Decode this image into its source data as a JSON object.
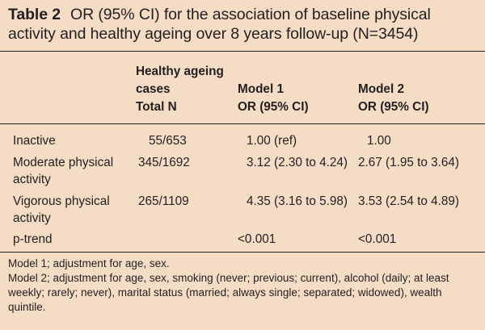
{
  "caption": {
    "number": "Table 2",
    "title": "OR (95% CI) for the association of baseline physical activity and healthy ageing over 8 years follow-up (N=3454)"
  },
  "headers": {
    "cases": [
      "Healthy ageing",
      "cases",
      "Total N"
    ],
    "model1": [
      "Model 1",
      "OR (95% CI)"
    ],
    "model2": [
      "Model 2",
      "OR (95% CI)"
    ]
  },
  "rows": [
    {
      "label": [
        "Inactive"
      ],
      "cases": "55/653",
      "model1": "1.00 (ref)",
      "model2": "1.00"
    },
    {
      "label": [
        "Moderate physical",
        "activity"
      ],
      "cases": "345/1692",
      "model1": "3.12 (2.30 to 4.24)",
      "model2": "2.67 (1.95 to 3.64)"
    },
    {
      "label": [
        "Vigorous physical",
        "activity"
      ],
      "cases": "265/1109",
      "model1": "4.35 (3.16 to 5.98)",
      "model2": "3.53 (2.54 to 4.89)"
    },
    {
      "label": [
        "p-trend"
      ],
      "cases": "",
      "model1": "<0.001",
      "model2": "<0.001"
    }
  ],
  "footnotes": [
    "Model 1; adjustment for age, sex.",
    "Model 2; adjustment for age, sex, smoking (never; previous; current), alcohol (daily; at least weekly; rarely; never), marital status (married; always single; separated; widowed), wealth quintile."
  ],
  "colors": {
    "background": "#f4dcc5",
    "text": "#231f20"
  }
}
